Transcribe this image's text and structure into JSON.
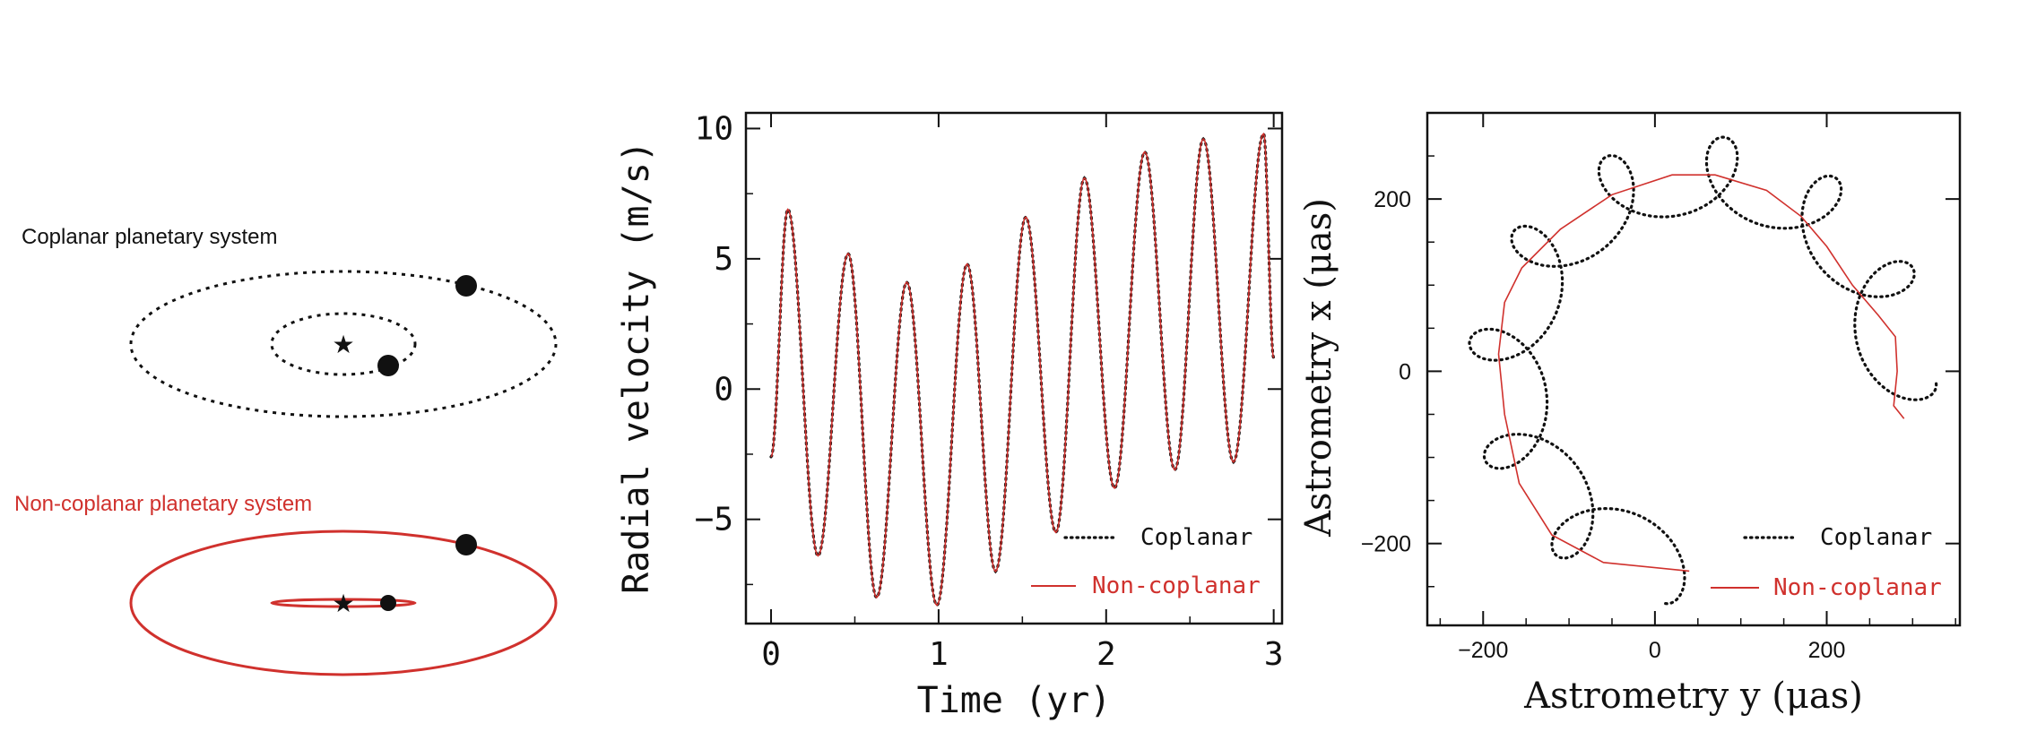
{
  "colors": {
    "black": "#111111",
    "red": "#d0312d"
  },
  "schematic": {
    "coplanar_label": "Coplanar planetary system",
    "noncoplanar_label": "Non-coplanar planetary system",
    "star_glyph": "★"
  },
  "chart_data": [
    {
      "type": "line",
      "title": "",
      "xlabel": "Time (yr)",
      "ylabel": "Radial velocity (m/s)",
      "xlim": [
        -0.15,
        3.05
      ],
      "ylim": [
        -9,
        10.6
      ],
      "xticks": [
        0,
        1,
        2,
        3
      ],
      "yticks": [
        -5,
        0,
        5,
        10
      ],
      "xtick_labels": [
        "0",
        "1",
        "2",
        "3"
      ],
      "ytick_labels": [
        "−5",
        "0",
        "5",
        "10"
      ],
      "legend": [
        "Coplanar",
        "Non-coplanar"
      ],
      "legend_position": "bottom-right",
      "series": [
        {
          "name": "Coplanar",
          "style": "dotted",
          "color": "#111111"
        },
        {
          "name": "Non-coplanar",
          "style": "solid",
          "color": "#d0312d"
        }
      ],
      "extrema": {
        "t": [
          0.1,
          0.28,
          0.46,
          0.63,
          0.81,
          0.99,
          1.17,
          1.34,
          1.52,
          1.7,
          1.87,
          2.05,
          2.23,
          2.41,
          2.58,
          2.76,
          2.94
        ],
        "v": [
          6.9,
          -6.4,
          5.2,
          -8.0,
          4.1,
          -8.3,
          4.8,
          -7.0,
          6.6,
          -5.5,
          8.1,
          -3.8,
          9.1,
          -3.1,
          9.6,
          -2.8,
          9.8
        ]
      },
      "start": {
        "t": 0.0,
        "v": -2.6
      },
      "end": {
        "t": 3.0,
        "v": 1.2
      }
    },
    {
      "type": "line",
      "title": "",
      "xlabel": "Astrometry y (μas)",
      "ylabel": "Astrometry x (μas)",
      "xlim": [
        -265,
        355
      ],
      "ylim": [
        -295,
        300
      ],
      "xticks": [
        -200,
        0,
        200
      ],
      "yticks": [
        -200,
        0,
        200
      ],
      "xtick_labels": [
        "−200",
        "0",
        "200"
      ],
      "ytick_labels": [
        "−200",
        "0",
        "200"
      ],
      "legend": [
        "Coplanar",
        "Non-coplanar"
      ],
      "legend_position": "bottom-right",
      "series": [
        {
          "name": "Coplanar",
          "style": "dotted",
          "color": "#111111"
        },
        {
          "name": "Non-coplanar",
          "style": "solid",
          "color": "#d0312d",
          "points": [
            [
              40,
              -232
            ],
            [
              -60,
              -222
            ],
            [
              -120,
              -190
            ],
            [
              -158,
              -130
            ],
            [
              -175,
              -50
            ],
            [
              -182,
              20
            ],
            [
              -175,
              80
            ],
            [
              -155,
              120
            ],
            [
              -110,
              165
            ],
            [
              -50,
              205
            ],
            [
              20,
              228
            ],
            [
              70,
              228
            ],
            [
              130,
              210
            ],
            [
              170,
              180
            ],
            [
              200,
              145
            ],
            [
              230,
              100
            ],
            [
              260,
              65
            ],
            [
              280,
              40
            ],
            [
              282,
              0
            ],
            [
              278,
              -40
            ],
            [
              290,
              -55
            ]
          ]
        }
      ],
      "center": [
        55,
        0
      ],
      "big_radius": 228,
      "loop_radius": 45,
      "loops": 9.05,
      "start_angle_deg": 261,
      "end_angle_deg": -5
    }
  ]
}
